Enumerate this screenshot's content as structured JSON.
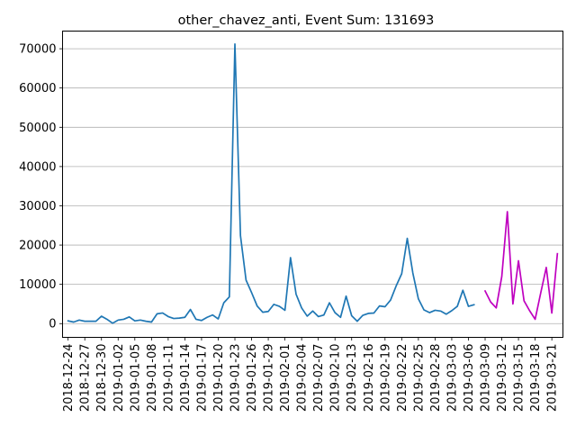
{
  "chart_data": {
    "type": "line",
    "title": "other_chavez_anti, Event Sum: 131693",
    "xlabel": "",
    "ylabel": "",
    "ylim": [
      -3500,
      74500
    ],
    "grid": "y-major",
    "legend": "none",
    "y_ticks": [
      0,
      10000,
      20000,
      30000,
      40000,
      50000,
      60000,
      70000
    ],
    "y_tick_labels": [
      "0",
      "10000",
      "20000",
      "30000",
      "40000",
      "50000",
      "60000",
      "70000"
    ],
    "x_range": [
      "2018-12-23",
      "2019-03-23"
    ],
    "x_ticks": [
      "2018-12-24",
      "2018-12-27",
      "2018-12-30",
      "2019-01-02",
      "2019-01-05",
      "2019-01-08",
      "2019-01-11",
      "2019-01-14",
      "2019-01-17",
      "2019-01-20",
      "2019-01-23",
      "2019-01-26",
      "2019-01-29",
      "2019-02-01",
      "2019-02-04",
      "2019-02-07",
      "2019-02-10",
      "2019-02-13",
      "2019-02-16",
      "2019-02-19",
      "2019-02-22",
      "2019-02-25",
      "2019-02-28",
      "2019-03-03",
      "2019-03-06",
      "2019-03-09",
      "2019-03-12",
      "2019-03-15",
      "2019-03-18",
      "2019-03-21"
    ],
    "series": [
      {
        "color": "#1f77b4",
        "points": [
          [
            "2018-12-24",
            700
          ],
          [
            "2018-12-25",
            400
          ],
          [
            "2018-12-26",
            900
          ],
          [
            "2018-12-27",
            600
          ],
          [
            "2018-12-28",
            600
          ],
          [
            "2018-12-29",
            600
          ],
          [
            "2018-12-30",
            1900
          ],
          [
            "2018-12-31",
            1100
          ],
          [
            "2019-01-01",
            100
          ],
          [
            "2019-01-02",
            900
          ],
          [
            "2019-01-03",
            1100
          ],
          [
            "2019-01-04",
            1700
          ],
          [
            "2019-01-05",
            700
          ],
          [
            "2019-01-06",
            900
          ],
          [
            "2019-01-07",
            600
          ],
          [
            "2019-01-08",
            400
          ],
          [
            "2019-01-09",
            2500
          ],
          [
            "2019-01-10",
            2700
          ],
          [
            "2019-01-11",
            1800
          ],
          [
            "2019-01-12",
            1300
          ],
          [
            "2019-01-13",
            1400
          ],
          [
            "2019-01-14",
            1600
          ],
          [
            "2019-01-15",
            3600
          ],
          [
            "2019-01-16",
            1100
          ],
          [
            "2019-01-17",
            800
          ],
          [
            "2019-01-18",
            1600
          ],
          [
            "2019-01-19",
            2200
          ],
          [
            "2019-01-20",
            1200
          ],
          [
            "2019-01-21",
            5300
          ],
          [
            "2019-01-22",
            6800
          ],
          [
            "2019-01-23",
            71200
          ],
          [
            "2019-01-24",
            22400
          ],
          [
            "2019-01-25",
            11100
          ],
          [
            "2019-01-26",
            7900
          ],
          [
            "2019-01-27",
            4500
          ],
          [
            "2019-01-28",
            2900
          ],
          [
            "2019-01-29",
            3100
          ],
          [
            "2019-01-30",
            4900
          ],
          [
            "2019-01-31",
            4400
          ],
          [
            "2019-02-01",
            3400
          ],
          [
            "2019-02-02",
            16800
          ],
          [
            "2019-02-03",
            7500
          ],
          [
            "2019-02-04",
            4000
          ],
          [
            "2019-02-05",
            1900
          ],
          [
            "2019-02-06",
            3200
          ],
          [
            "2019-02-07",
            1800
          ],
          [
            "2019-02-08",
            2200
          ],
          [
            "2019-02-09",
            5300
          ],
          [
            "2019-02-10",
            2800
          ],
          [
            "2019-02-11",
            1600
          ],
          [
            "2019-02-12",
            7000
          ],
          [
            "2019-02-13",
            2000
          ],
          [
            "2019-02-14",
            600
          ],
          [
            "2019-02-15",
            2100
          ],
          [
            "2019-02-16",
            2600
          ],
          [
            "2019-02-17",
            2700
          ],
          [
            "2019-02-18",
            4500
          ],
          [
            "2019-02-19",
            4300
          ],
          [
            "2019-02-20",
            6000
          ],
          [
            "2019-02-21",
            9600
          ],
          [
            "2019-02-22",
            12700
          ],
          [
            "2019-02-23",
            21700
          ],
          [
            "2019-02-24",
            12900
          ],
          [
            "2019-02-25",
            6300
          ],
          [
            "2019-02-26",
            3500
          ],
          [
            "2019-02-27",
            2800
          ],
          [
            "2019-02-28",
            3400
          ],
          [
            "2019-03-01",
            3200
          ],
          [
            "2019-03-02",
            2400
          ],
          [
            "2019-03-03",
            3300
          ],
          [
            "2019-03-04",
            4400
          ],
          [
            "2019-03-05",
            8500
          ],
          [
            "2019-03-06",
            4400
          ],
          [
            "2019-03-07",
            4800
          ]
        ]
      },
      {
        "color": "#bf00bf",
        "points": [
          [
            "2019-03-09",
            8300
          ],
          [
            "2019-03-10",
            5500
          ],
          [
            "2019-03-11",
            4000
          ],
          [
            "2019-03-12",
            12000
          ],
          [
            "2019-03-13",
            28500
          ],
          [
            "2019-03-14",
            5000
          ],
          [
            "2019-03-15",
            16000
          ],
          [
            "2019-03-16",
            5800
          ],
          [
            "2019-03-17",
            3300
          ],
          [
            "2019-03-18",
            1100
          ],
          [
            "2019-03-19",
            7800
          ],
          [
            "2019-03-20",
            14300
          ],
          [
            "2019-03-21",
            2700
          ],
          [
            "2019-03-22",
            17800
          ]
        ]
      }
    ]
  }
}
